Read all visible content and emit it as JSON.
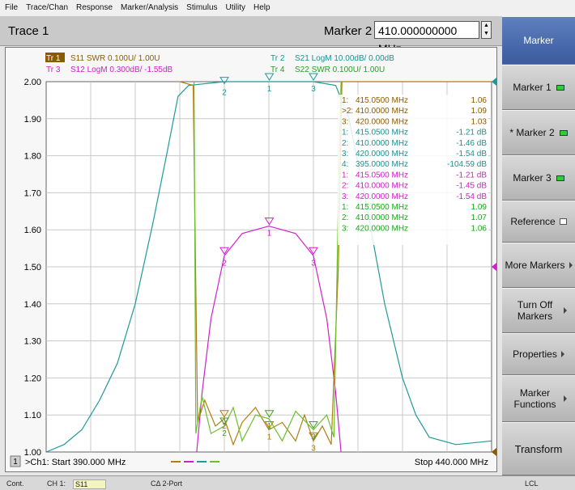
{
  "menu": [
    "File",
    "Trace/Chan",
    "Response",
    "Marker/Analysis",
    "Stimulus",
    "Utility",
    "Help"
  ],
  "header": {
    "trace_title": "Trace 1",
    "marker_label": "Marker 2",
    "marker_value": "410.000000000 MHz"
  },
  "softkeys": [
    {
      "label": "Marker",
      "kind": "head"
    },
    {
      "label": "Marker 1",
      "kind": "led"
    },
    {
      "label": "* Marker 2",
      "kind": "led"
    },
    {
      "label": "Marker 3",
      "kind": "led"
    },
    {
      "label": "Reference",
      "kind": "check"
    },
    {
      "label": "More Markers",
      "kind": "arrow"
    },
    {
      "label": "Turn Off Markers",
      "kind": "arrow"
    },
    {
      "label": "Properties",
      "kind": "arrow"
    },
    {
      "label": "Marker Functions",
      "kind": "arrow"
    },
    {
      "label": "Transform",
      "kind": "none"
    }
  ],
  "trace_legend": [
    {
      "tag": "Tr 1",
      "text": "S11 SWR 0.100U/  1.00U",
      "color": "#8b5a00"
    },
    {
      "tag": "Tr 2",
      "text": "S21 LogM 10.00dB/  0.00dB",
      "color": "#1f8f8f"
    },
    {
      "tag": "Tr 3",
      "text": "S12 LogM 0.300dB/  -1.55dB",
      "color": "#d020c8"
    },
    {
      "tag": "Tr 4",
      "text": "S22 SWR 0.100U/  1.00U",
      "color": "#1aa81a"
    }
  ],
  "marker_table": [
    {
      "idx": "1:",
      "freq": "415.0500 MHz",
      "val": "1.06",
      "color": "#8b5a00"
    },
    {
      "idx": ">2:",
      "freq": "410.0000 MHz",
      "val": "1.09",
      "color": "#8b5a00"
    },
    {
      "idx": "3:",
      "freq": "420.0000 MHz",
      "val": "1.03",
      "color": "#8b5a00"
    },
    {
      "idx": "1:",
      "freq": "415.0500 MHz",
      "val": "-1.21 dB",
      "color": "#1f8f8f"
    },
    {
      "idx": "2:",
      "freq": "410.0000 MHz",
      "val": "-1.46 dB",
      "color": "#1f8f8f"
    },
    {
      "idx": "3:",
      "freq": "420.0000 MHz",
      "val": "-1.54 dB",
      "color": "#1f8f8f"
    },
    {
      "idx": "4:",
      "freq": "395.0000 MHz",
      "val": "-104.59 dB",
      "color": "#1f8f8f"
    },
    {
      "idx": "1:",
      "freq": "415.0500 MHz",
      "val": "-1.21 dB",
      "color": "#d020c8"
    },
    {
      "idx": "2:",
      "freq": "410.0000 MHz",
      "val": "-1.45 dB",
      "color": "#d020c8"
    },
    {
      "idx": "3:",
      "freq": "420.0000 MHz",
      "val": "-1.54 dB",
      "color": "#d020c8"
    },
    {
      "idx": "1:",
      "freq": "415.0500 MHz",
      "val": "1.09",
      "color": "#1aa81a"
    },
    {
      "idx": "2:",
      "freq": "410.0000 MHz",
      "val": "1.07",
      "color": "#1aa81a"
    },
    {
      "idx": "3:",
      "freq": "420.0000 MHz",
      "val": "1.06",
      "color": "#1aa81a"
    }
  ],
  "footer": {
    "channel_num": "1",
    "start": ">Ch1: Start  390.000 MHz",
    "stop": "Stop  440.000 MHz"
  },
  "status": {
    "mode": "Cont.",
    "channel": "CH 1:",
    "param": "S11",
    "cal": "CΔ 2-Port",
    "ref": "LCL"
  },
  "chart_data": {
    "type": "line",
    "xlim": [
      390,
      440
    ],
    "ylim": [
      1.0,
      2.0
    ],
    "y_ticks": [
      "2.00",
      "1.90",
      "1.80",
      "1.70",
      "1.60",
      "1.50",
      "1.40",
      "1.30",
      "1.20",
      "1.10",
      "1.00"
    ],
    "series": [
      {
        "name": "Tr 2",
        "color": "#1f9a9a",
        "points": [
          [
            390,
            1.0
          ],
          [
            392,
            1.02
          ],
          [
            394,
            1.06
          ],
          [
            396,
            1.14
          ],
          [
            398,
            1.24
          ],
          [
            400,
            1.4
          ],
          [
            402,
            1.62
          ],
          [
            403.5,
            1.8
          ],
          [
            404.8,
            1.96
          ],
          [
            406,
            1.99
          ],
          [
            410,
            2.0
          ],
          [
            415,
            2.0
          ],
          [
            420,
            2.0
          ],
          [
            422.5,
            1.99
          ],
          [
            424,
            1.9
          ],
          [
            426,
            1.66
          ],
          [
            428,
            1.4
          ],
          [
            430,
            1.2
          ],
          [
            431.5,
            1.1
          ],
          [
            433,
            1.04
          ],
          [
            436,
            1.02
          ],
          [
            440,
            1.03
          ]
        ]
      },
      {
        "name": "Tr 3",
        "color": "#d020c8",
        "points": [
          [
            406.9,
            1.0
          ],
          [
            407.5,
            1.16
          ],
          [
            408.5,
            1.36
          ],
          [
            410,
            1.53
          ],
          [
            412,
            1.59
          ],
          [
            415,
            1.61
          ],
          [
            418,
            1.59
          ],
          [
            420,
            1.53
          ],
          [
            421.5,
            1.36
          ],
          [
            422.5,
            1.16
          ],
          [
            423.1,
            1.0
          ]
        ]
      },
      {
        "name": "Tr 1",
        "color": "#b07d10",
        "points": [
          [
            405,
            2.0
          ],
          [
            406.5,
            1.99
          ],
          [
            407,
            1.08
          ],
          [
            407.8,
            1.14
          ],
          [
            409,
            1.07
          ],
          [
            410,
            1.09
          ],
          [
            411,
            1.02
          ],
          [
            412,
            1.08
          ],
          [
            413.5,
            1.12
          ],
          [
            415,
            1.06
          ],
          [
            416.5,
            1.08
          ],
          [
            418,
            1.03
          ],
          [
            419,
            1.1
          ],
          [
            420,
            1.03
          ],
          [
            421,
            1.07
          ],
          [
            422,
            1.02
          ],
          [
            422.8,
            1.5
          ],
          [
            423.2,
            2.0
          ],
          [
            440,
            2.0
          ]
        ]
      },
      {
        "name": "Tr 4",
        "color": "#6cc02c",
        "points": [
          [
            406.6,
            2.0
          ],
          [
            406.8,
            1.05
          ],
          [
            407.5,
            1.15
          ],
          [
            408.5,
            1.05
          ],
          [
            410,
            1.07
          ],
          [
            411,
            1.12
          ],
          [
            412,
            1.03
          ],
          [
            413.5,
            1.1
          ],
          [
            415,
            1.09
          ],
          [
            416.5,
            1.03
          ],
          [
            418,
            1.11
          ],
          [
            420,
            1.06
          ],
          [
            421.5,
            1.1
          ],
          [
            422.3,
            1.04
          ],
          [
            422.9,
            1.8
          ],
          [
            423.1,
            2.0
          ]
        ]
      }
    ],
    "markers": [
      {
        "x": 415.05,
        "y": 2.0,
        "label": "1",
        "color": "#1f9a9a"
      },
      {
        "x": 410.0,
        "y": 1.99,
        "label": "2",
        "color": "#1f9a9a"
      },
      {
        "x": 420.0,
        "y": 2.0,
        "label": "3",
        "color": "#1f9a9a"
      },
      {
        "x": 415.05,
        "y": 1.61,
        "label": "1",
        "color": "#d020c8"
      },
      {
        "x": 410.0,
        "y": 1.53,
        "label": "2",
        "color": "#d020c8"
      },
      {
        "x": 420.0,
        "y": 1.53,
        "label": "3",
        "color": "#d020c8"
      },
      {
        "x": 415.05,
        "y": 1.06,
        "label": "1",
        "color": "#b07d10"
      },
      {
        "x": 410.0,
        "y": 1.09,
        "label": "2",
        "color": "#b07d10"
      },
      {
        "x": 420.0,
        "y": 1.03,
        "label": "3",
        "color": "#b07d10"
      },
      {
        "x": 415.05,
        "y": 1.09,
        "label": "1",
        "color": "#4a9a2c"
      },
      {
        "x": 410.0,
        "y": 1.07,
        "label": "2",
        "color": "#4a9a2c"
      },
      {
        "x": 420.0,
        "y": 1.06,
        "label": "3",
        "color": "#4a9a2c"
      }
    ]
  }
}
